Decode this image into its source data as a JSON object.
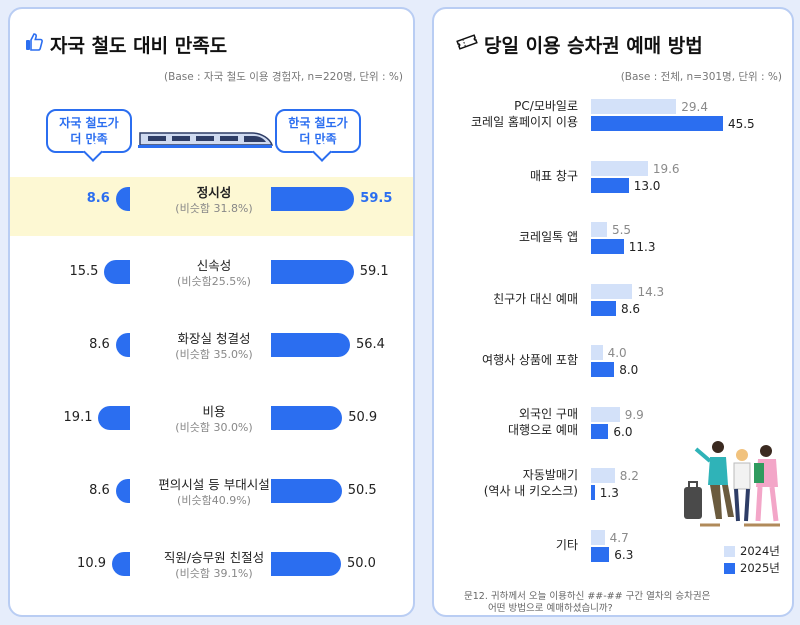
{
  "left_panel": {
    "title": "자국 철도 대비 만족도",
    "title_icon": "thumbs-up-icon",
    "base_note": "(Base : 자국 철도 이용 경험자, n=220명, 단위 : %)",
    "bubble_left": [
      "자국 철도가",
      "더 만족"
    ],
    "bubble_right": [
      "한국 철도가",
      "더 만족"
    ],
    "highlight_color": "#fdf8d3"
  },
  "right_panel": {
    "title": "당일 이용 승차권 예매 방법",
    "title_icon": "ticket-icon",
    "base_note": "(Base : 전체, n=301명, 단위 : %)",
    "legend": [
      "2024년",
      "2025년"
    ],
    "footnote": [
      "문12. 귀하께서 오늘 이용하신 ##-## 구간 열차의 승차권은",
      "어떤 방법으로 예매하셨습니까?"
    ]
  },
  "colors": {
    "accent": "#2b6ef0",
    "light": "#d3e1f9",
    "background": "#e6edfb"
  },
  "chart_data": [
    {
      "type": "bar",
      "orientation": "diverging-horizontal",
      "categories": [
        "정시성",
        "신속성",
        "화장실 청결성",
        "비용",
        "편의시설 등 부대시설",
        "직원/승무원 친절성"
      ],
      "sublabels": [
        "(비슷함 31.8%)",
        "(비슷함25.5%)",
        "(비슷함 35.0%)",
        "(비슷함 30.0%)",
        "(비슷함40.9%)",
        "(비슷함 39.1%)"
      ],
      "series": [
        {
          "name": "자국 철도가 더 만족",
          "values": [
            8.6,
            15.5,
            8.6,
            19.1,
            8.6,
            10.9
          ]
        },
        {
          "name": "한국 철도가 더 만족",
          "values": [
            59.5,
            59.1,
            56.4,
            50.9,
            50.5,
            50.0
          ]
        }
      ],
      "value_labels_left": [
        "8.6",
        "15.5",
        "8.6",
        "19.1",
        "8.6",
        "10.9"
      ],
      "value_labels_right": [
        "59.5",
        "59.1",
        "56.4",
        "50.9",
        "50.5",
        "50.0"
      ],
      "highlighted_category": "정시성"
    },
    {
      "type": "bar",
      "orientation": "horizontal",
      "categories": [
        [
          "PC/모바일로",
          "코레일 홈페이지 이용"
        ],
        [
          "매표 창구"
        ],
        [
          "코레일톡 앱"
        ],
        [
          "친구가 대신 예매"
        ],
        [
          "여행사 상품에 포함"
        ],
        [
          "외국인 구매",
          "대행으로 예매"
        ],
        [
          "자동발매기",
          "(역사 내 키오스크)"
        ],
        [
          "기타"
        ]
      ],
      "series": [
        {
          "name": "2024년",
          "values": [
            29.4,
            19.6,
            5.5,
            14.3,
            4.0,
            9.9,
            8.2,
            4.7
          ],
          "labels": [
            "29.4",
            "19.6",
            "5.5",
            "14.3",
            "4.0",
            "9.9",
            "8.2",
            "4.7"
          ]
        },
        {
          "name": "2025년",
          "values": [
            45.5,
            13.0,
            11.3,
            8.6,
            8.0,
            6.0,
            1.3,
            6.3
          ],
          "labels": [
            "45.5",
            "13.0",
            "11.3",
            "8.6",
            "8.0",
            "6.0",
            "1.3",
            "6.3"
          ]
        }
      ],
      "legend": "bottom-right"
    }
  ]
}
